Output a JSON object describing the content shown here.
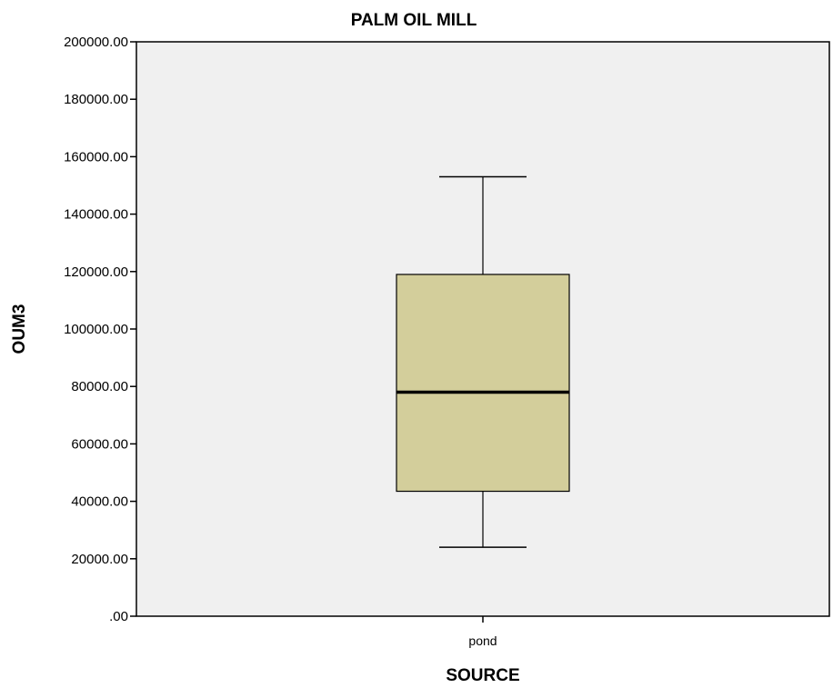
{
  "chart_data": {
    "type": "boxplot",
    "title": "PALM OIL MILL",
    "xlabel": "SOURCE",
    "ylabel": "OUM3",
    "ylim": [
      0,
      200000
    ],
    "yticks": [
      0,
      20000,
      40000,
      60000,
      80000,
      100000,
      120000,
      140000,
      160000,
      180000,
      200000
    ],
    "ytick_labels": [
      ".00",
      "20000.00",
      "40000.00",
      "60000.00",
      "80000.00",
      "100000.00",
      "120000.00",
      "140000.00",
      "160000.00",
      "180000.00",
      "200000.00"
    ],
    "categories": [
      "pond"
    ],
    "boxes": [
      {
        "category": "pond",
        "min": 24000,
        "q1": 43500,
        "median": 78000,
        "q3": 119000,
        "max": 153000
      }
    ],
    "grid": false,
    "colors": {
      "plot_background": "#f0f0f0",
      "box_fill": "#d3ce9b",
      "box_stroke": "#000000"
    }
  }
}
